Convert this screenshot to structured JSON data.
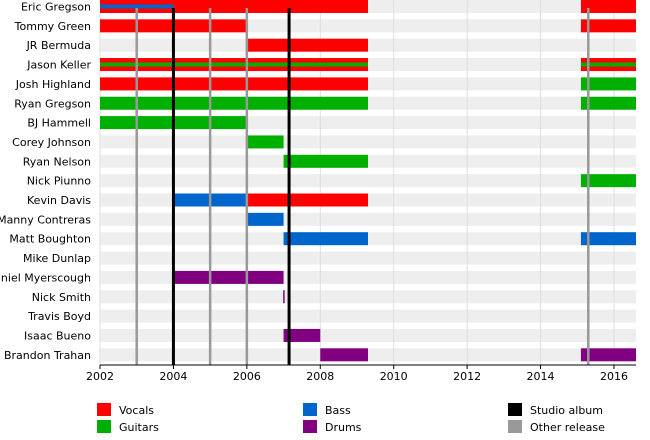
{
  "chart_data": {
    "type": "timeline",
    "title": "",
    "xlabel": "",
    "ylabel": "",
    "xlim": [
      2002,
      2016.6
    ],
    "x_ticks": [
      "2002",
      "2004",
      "2006",
      "2008",
      "2010",
      "2012",
      "2014",
      "2016"
    ],
    "members": [
      {
        "name": "Eric Gregson",
        "bars": [
          {
            "role": "Vocals",
            "start": 2002,
            "end": 2009.3
          },
          {
            "role": "Vocals",
            "start": 2015.1,
            "end": 2016.6
          }
        ],
        "overlays": [
          {
            "role": "Bass",
            "start": 2002,
            "end": 2004
          }
        ]
      },
      {
        "name": "Tommy Green",
        "bars": [
          {
            "role": "Vocals",
            "start": 2002,
            "end": 2006
          },
          {
            "role": "Vocals",
            "start": 2015.1,
            "end": 2016.6
          }
        ],
        "overlays": []
      },
      {
        "name": "JR Bermuda",
        "bars": [
          {
            "role": "Vocals",
            "start": 2006,
            "end": 2009.3
          }
        ],
        "overlays": []
      },
      {
        "name": "Jason Keller",
        "bars": [
          {
            "role": "Vocals",
            "start": 2002,
            "end": 2009.3
          },
          {
            "role": "Vocals",
            "start": 2015.1,
            "end": 2016.6
          }
        ],
        "overlays": [
          {
            "role": "Guitars",
            "start": 2002,
            "end": 2009.3
          },
          {
            "role": "Guitars",
            "start": 2015.1,
            "end": 2016.6
          }
        ]
      },
      {
        "name": "Josh Highland",
        "bars": [
          {
            "role": "Vocals",
            "start": 2002,
            "end": 2009.3
          },
          {
            "role": "Guitars",
            "start": 2015.1,
            "end": 2016.6
          }
        ],
        "overlays": []
      },
      {
        "name": "Ryan Gregson",
        "bars": [
          {
            "role": "Guitars",
            "start": 2002,
            "end": 2009.3
          },
          {
            "role": "Guitars",
            "start": 2015.1,
            "end": 2016.6
          }
        ],
        "overlays": []
      },
      {
        "name": "BJ Hammell",
        "bars": [
          {
            "role": "Guitars",
            "start": 2002,
            "end": 2006
          }
        ],
        "overlays": []
      },
      {
        "name": "Corey Johnson",
        "bars": [
          {
            "role": "Guitars",
            "start": 2006,
            "end": 2007
          }
        ],
        "overlays": []
      },
      {
        "name": "Ryan Nelson",
        "bars": [
          {
            "role": "Guitars",
            "start": 2007,
            "end": 2009.3
          }
        ],
        "overlays": []
      },
      {
        "name": "Nick Piunno",
        "bars": [
          {
            "role": "Guitars",
            "start": 2015.1,
            "end": 2016.6
          }
        ],
        "overlays": []
      },
      {
        "name": "Kevin Davis",
        "bars": [
          {
            "role": "Bass",
            "start": 2004,
            "end": 2006
          },
          {
            "role": "Vocals",
            "start": 2006,
            "end": 2009.3
          }
        ],
        "overlays": []
      },
      {
        "name": "Manny Contreras",
        "bars": [
          {
            "role": "Bass",
            "start": 2006,
            "end": 2007
          }
        ],
        "overlays": []
      },
      {
        "name": "Matt Boughton",
        "bars": [
          {
            "role": "Bass",
            "start": 2007,
            "end": 2009.3
          },
          {
            "role": "Bass",
            "start": 2015.1,
            "end": 2016.6
          }
        ],
        "overlays": []
      },
      {
        "name": "Mike Dunlap",
        "bars": [
          {
            "role": "Drums",
            "start": 2003.98,
            "end": 2004.03
          }
        ],
        "overlays": []
      },
      {
        "name": "Daniel Myerscough",
        "bars": [
          {
            "role": "Drums",
            "start": 2004,
            "end": 2007
          }
        ],
        "overlays": []
      },
      {
        "name": "Nick Smith",
        "bars": [
          {
            "role": "Drums",
            "start": 2006.99,
            "end": 2007.03
          }
        ],
        "overlays": []
      },
      {
        "name": "Travis Boyd",
        "bars": [],
        "overlays": []
      },
      {
        "name": "Isaac Bueno",
        "bars": [
          {
            "role": "Drums",
            "start": 2007,
            "end": 2008
          }
        ],
        "overlays": []
      },
      {
        "name": "Brandon Trahan",
        "bars": [
          {
            "role": "Drums",
            "start": 2008,
            "end": 2009.3
          },
          {
            "role": "Drums",
            "start": 2015.1,
            "end": 2016.6
          }
        ],
        "overlays": []
      }
    ],
    "events": [
      {
        "type": "Other release",
        "x": 2003
      },
      {
        "type": "Studio album",
        "x": 2004
      },
      {
        "type": "Other release",
        "x": 2005
      },
      {
        "type": "Other release",
        "x": 2006
      },
      {
        "type": "Studio album",
        "x": 2007.15
      },
      {
        "type": "Other release",
        "x": 2015.3
      }
    ],
    "roles": [
      {
        "name": "Vocals",
        "color": "#ff0000"
      },
      {
        "name": "Guitars",
        "color": "#00b000"
      },
      {
        "name": "Bass",
        "color": "#0066cc"
      },
      {
        "name": "Drums",
        "color": "#800080"
      }
    ],
    "event_types": [
      {
        "name": "Studio album",
        "color": "#000000"
      },
      {
        "name": "Other release",
        "color": "#999999"
      }
    ],
    "legend": [
      {
        "label": "Vocals",
        "color": "#ff0000"
      },
      {
        "label": "Guitars",
        "color": "#00b000"
      },
      {
        "label": "Bass",
        "color": "#0066cc"
      },
      {
        "label": "Drums",
        "color": "#800080"
      },
      {
        "label": "Studio album",
        "color": "#000000"
      },
      {
        "label": "Other release",
        "color": "#999999"
      }
    ],
    "grid": true,
    "row_band_color": "#eeeeee",
    "grid_color": "#dddddd",
    "legend_placement": "bottom"
  }
}
